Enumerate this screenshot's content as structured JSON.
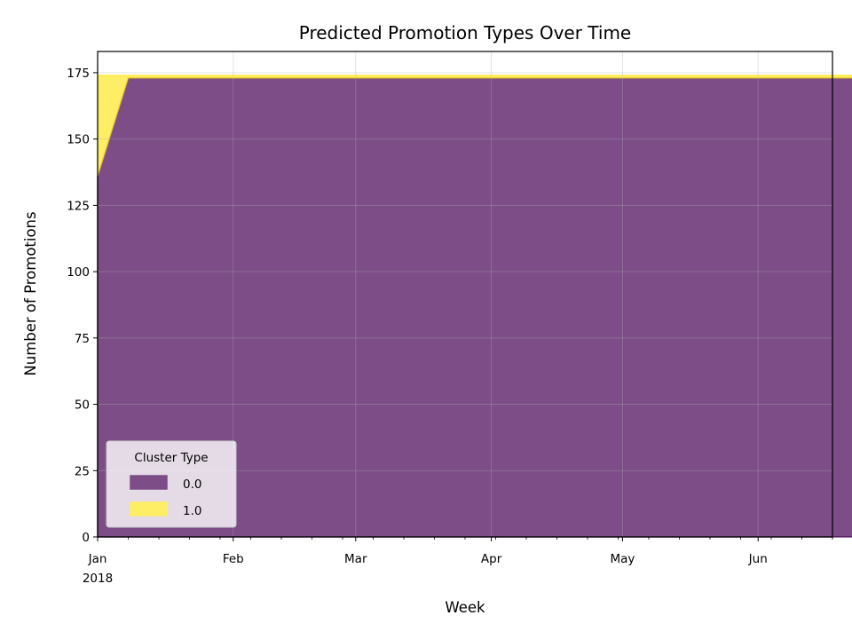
{
  "chart_data": {
    "type": "area",
    "stacked": true,
    "title": "Predicted Promotion Types Over Time",
    "xlabel": "Week",
    "ylabel": "Number of Promotions",
    "x_start": "2018-01-01",
    "x_end": "2018-06-18",
    "x_step_days": 7,
    "ylim": [
      0,
      183
    ],
    "yticks": [
      0,
      25,
      50,
      75,
      100,
      125,
      150,
      175
    ],
    "xticks": [
      {
        "date": "2018-01-01",
        "label": "Jan",
        "sublabel": "2018"
      },
      {
        "date": "2018-02-01",
        "label": "Feb"
      },
      {
        "date": "2018-03-01",
        "label": "Mar"
      },
      {
        "date": "2018-04-01",
        "label": "Apr"
      },
      {
        "date": "2018-05-01",
        "label": "May"
      },
      {
        "date": "2018-06-01",
        "label": "Jun"
      }
    ],
    "grid": true,
    "legend": {
      "title": "Cluster Type",
      "position": "lower-left"
    },
    "series": [
      {
        "name": "0.0",
        "color": "#440154",
        "values": [
          136,
          173,
          173,
          173,
          173,
          173,
          173,
          173,
          173,
          173,
          173,
          173,
          173,
          173,
          173,
          173,
          173,
          173,
          173,
          173,
          173,
          173,
          173,
          173,
          173,
          173
        ]
      },
      {
        "name": "1.0",
        "color": "#fde725",
        "values": [
          38,
          1,
          1,
          1,
          1,
          1,
          1,
          1,
          1,
          1,
          1,
          1,
          1,
          1,
          1,
          1,
          1,
          1,
          1,
          1,
          1,
          1,
          1,
          1,
          1,
          1
        ]
      }
    ]
  }
}
